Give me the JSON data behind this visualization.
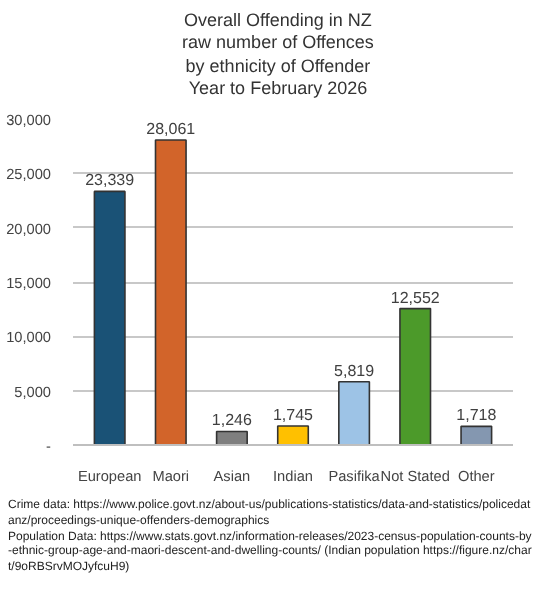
{
  "chart_data": {
    "type": "bar",
    "title": "Overall Offending in NZ\nraw number of Offences\nby ethnicity of Offender\nYear to February 2026",
    "categories": [
      "European",
      "Maori",
      "Asian",
      "Indian",
      "Pasifika",
      "Not Stated",
      "Other"
    ],
    "values": [
      23339,
      28061,
      1246,
      1745,
      5819,
      12552,
      1718
    ],
    "colors": [
      "#1a5276",
      "#d2642a",
      "#7f7f7f",
      "#ffc000",
      "#9dc3e6",
      "#4c9a2a",
      "#8497b0"
    ],
    "ylim": [
      0,
      30000
    ],
    "yticks": [
      {
        "value": 0,
        "label": "-"
      },
      {
        "value": 5000,
        "label": "5,000"
      },
      {
        "value": 10000,
        "label": "10,000"
      },
      {
        "value": 15000,
        "label": "15,000"
      },
      {
        "value": 20000,
        "label": "20,000"
      },
      {
        "value": 25000,
        "label": "25,000"
      },
      {
        "value": 30000,
        "label": "30,000"
      }
    ],
    "grid": "y",
    "value_labels": [
      "23,339",
      "28,061",
      "1,246",
      "1,745",
      "5,819",
      "12,552",
      "1,718"
    ],
    "annotations": [
      "Crime data: https://www.police.govt.nz/about-us/publications-statistics/data-and-statistics/policedatanz/proceedings-unique-offenders-demographics",
      "Population Data: https://www.stats.govt.nz/information-releases/2023-census-population-counts-by-ethnic-group-age-and-maori-descent-and-dwelling-counts/ (Indian population https://figure.nz/chart/9oRBSrvMOJyfcuH9)"
    ]
  }
}
